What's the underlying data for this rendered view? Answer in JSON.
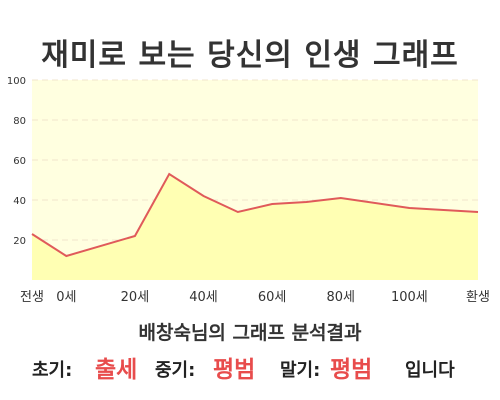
{
  "header": {
    "title": "재미로 보는 당신의 인생 그래프"
  },
  "result": {
    "subtitle": "배창숙님의 그래프 분석결과",
    "early_label": "초기:",
    "early_value": "출세",
    "middle_label": "중기:",
    "middle_value": "평범",
    "late_label": "말기:",
    "late_value": "평범",
    "ending": "입니다"
  },
  "colors": {
    "plot_fill": "#ffffe0",
    "area_fill": "#ffffb3",
    "line": "#e05a5a",
    "grid": "#f0e6cc",
    "axis_text": "#333333",
    "highlight": "#e84c4c"
  },
  "chart_data": {
    "type": "area",
    "x": [
      "전생",
      "0세",
      "",
      "20세",
      "",
      "40세",
      "",
      "60세",
      "",
      "80세",
      "",
      "100세",
      "",
      "환생"
    ],
    "values": [
      23,
      12,
      null,
      22,
      53,
      42,
      34,
      38,
      39,
      41,
      null,
      36,
      null,
      34
    ],
    "y_ticks": [
      20,
      40,
      60,
      80,
      100
    ],
    "ylim": [
      0,
      100
    ],
    "grid": true,
    "legend": "none"
  }
}
